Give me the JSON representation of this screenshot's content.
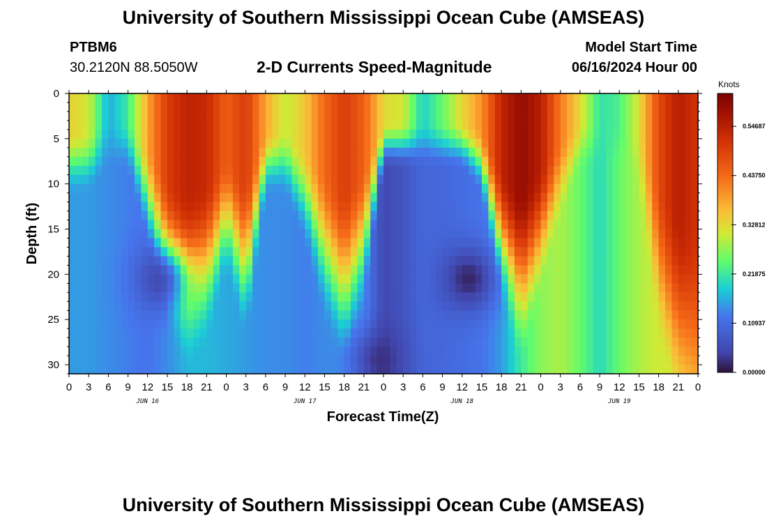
{
  "header": {
    "title": "University of Southern Mississippi Ocean Cube (AMSEAS)",
    "station_name": "PTBM6",
    "station_coords": "30.2120N  88.5050W",
    "plot_title": "2-D Currents Speed-Magnitude",
    "model_start_label": "Model Start Time",
    "model_start_value": "06/16/2024 Hour 00"
  },
  "footer": {
    "title": "University of Southern Mississippi Ocean Cube (AMSEAS)"
  },
  "chart_data": {
    "type": "heatmap",
    "title": "2-D Currents Speed-Magnitude",
    "xlabel": "Forecast Time(Z)",
    "ylabel": "Depth (ft)",
    "x_range_hours": [
      0,
      96
    ],
    "y_range_ft": [
      0,
      31
    ],
    "x_tick_hours": [
      0,
      3,
      6,
      9,
      12,
      15,
      18,
      21,
      24,
      27,
      30,
      33,
      36,
      39,
      42,
      45,
      48,
      51,
      54,
      57,
      60,
      63,
      66,
      69,
      72,
      75,
      78,
      81,
      84,
      87,
      90,
      93,
      96
    ],
    "x_tick_labels": [
      "0",
      "3",
      "6",
      "9",
      "12",
      "15",
      "18",
      "21",
      "0",
      "3",
      "6",
      "9",
      "12",
      "15",
      "18",
      "21",
      "0",
      "3",
      "6",
      "9",
      "12",
      "15",
      "18",
      "21",
      "0",
      "3",
      "6",
      "9",
      "12",
      "15",
      "18",
      "21",
      "0"
    ],
    "date_labels": [
      {
        "label": "JUN 16",
        "hour": 12
      },
      {
        "label": "JUN 17",
        "hour": 36
      },
      {
        "label": "JUN 18",
        "hour": 60
      },
      {
        "label": "JUN 19",
        "hour": 84
      }
    ],
    "y_ticks": [
      0,
      5,
      10,
      15,
      20,
      25,
      30
    ],
    "y_tick_labels": [
      "0",
      "5",
      "10",
      "15",
      "20",
      "25",
      "30"
    ],
    "colorbar": {
      "unit": "Knots",
      "range": [
        0.0,
        0.62
      ],
      "tick_values": [
        0.0,
        0.109375,
        0.21875,
        0.328125,
        0.4375,
        0.546875
      ],
      "tick_labels": [
        "0.00000",
        "0.10937",
        "0.21875",
        "0.32812",
        "0.43750",
        "0.54687"
      ]
    },
    "speed_profile": {
      "x_hours": [
        0,
        3,
        6,
        9,
        12,
        15,
        18,
        21,
        24,
        27,
        30,
        33,
        36,
        39,
        42,
        45,
        48,
        51,
        54,
        57,
        60,
        63,
        66,
        69,
        72,
        75,
        78,
        81,
        84,
        87,
        90,
        93,
        96
      ],
      "surface_knots": [
        0.34,
        0.31,
        0.16,
        0.22,
        0.38,
        0.5,
        0.54,
        0.53,
        0.45,
        0.5,
        0.38,
        0.3,
        0.35,
        0.44,
        0.5,
        0.45,
        0.33,
        0.31,
        0.19,
        0.25,
        0.33,
        0.4,
        0.54,
        0.59,
        0.55,
        0.42,
        0.33,
        0.21,
        0.23,
        0.32,
        0.48,
        0.55,
        0.51
      ],
      "deep_knots": [
        0.15,
        0.15,
        0.14,
        0.13,
        0.12,
        0.14,
        0.17,
        0.17,
        0.16,
        0.15,
        0.14,
        0.14,
        0.13,
        0.14,
        0.15,
        0.14,
        0.05,
        0.07,
        0.1,
        0.1,
        0.11,
        0.12,
        0.15,
        0.22,
        0.27,
        0.29,
        0.25,
        0.2,
        0.25,
        0.29,
        0.31,
        0.3,
        0.31
      ],
      "surface_layer_depth_ft": [
        8,
        8,
        6,
        6,
        12,
        19,
        22,
        20,
        14,
        20,
        8,
        8,
        12,
        18,
        22,
        17,
        6,
        6,
        6,
        6,
        6,
        8,
        17,
        22,
        16,
        10,
        6,
        6,
        6,
        8,
        20,
        27,
        30
      ],
      "min_core": [
        {
          "hour": 14,
          "depth_ft": 20.5,
          "knots": 0.04
        },
        {
          "hour": 61,
          "depth_ft": 20.5,
          "knots": 0.0
        },
        {
          "hour": 47,
          "depth_ft": 29.5,
          "knots": 0.02
        }
      ]
    }
  }
}
